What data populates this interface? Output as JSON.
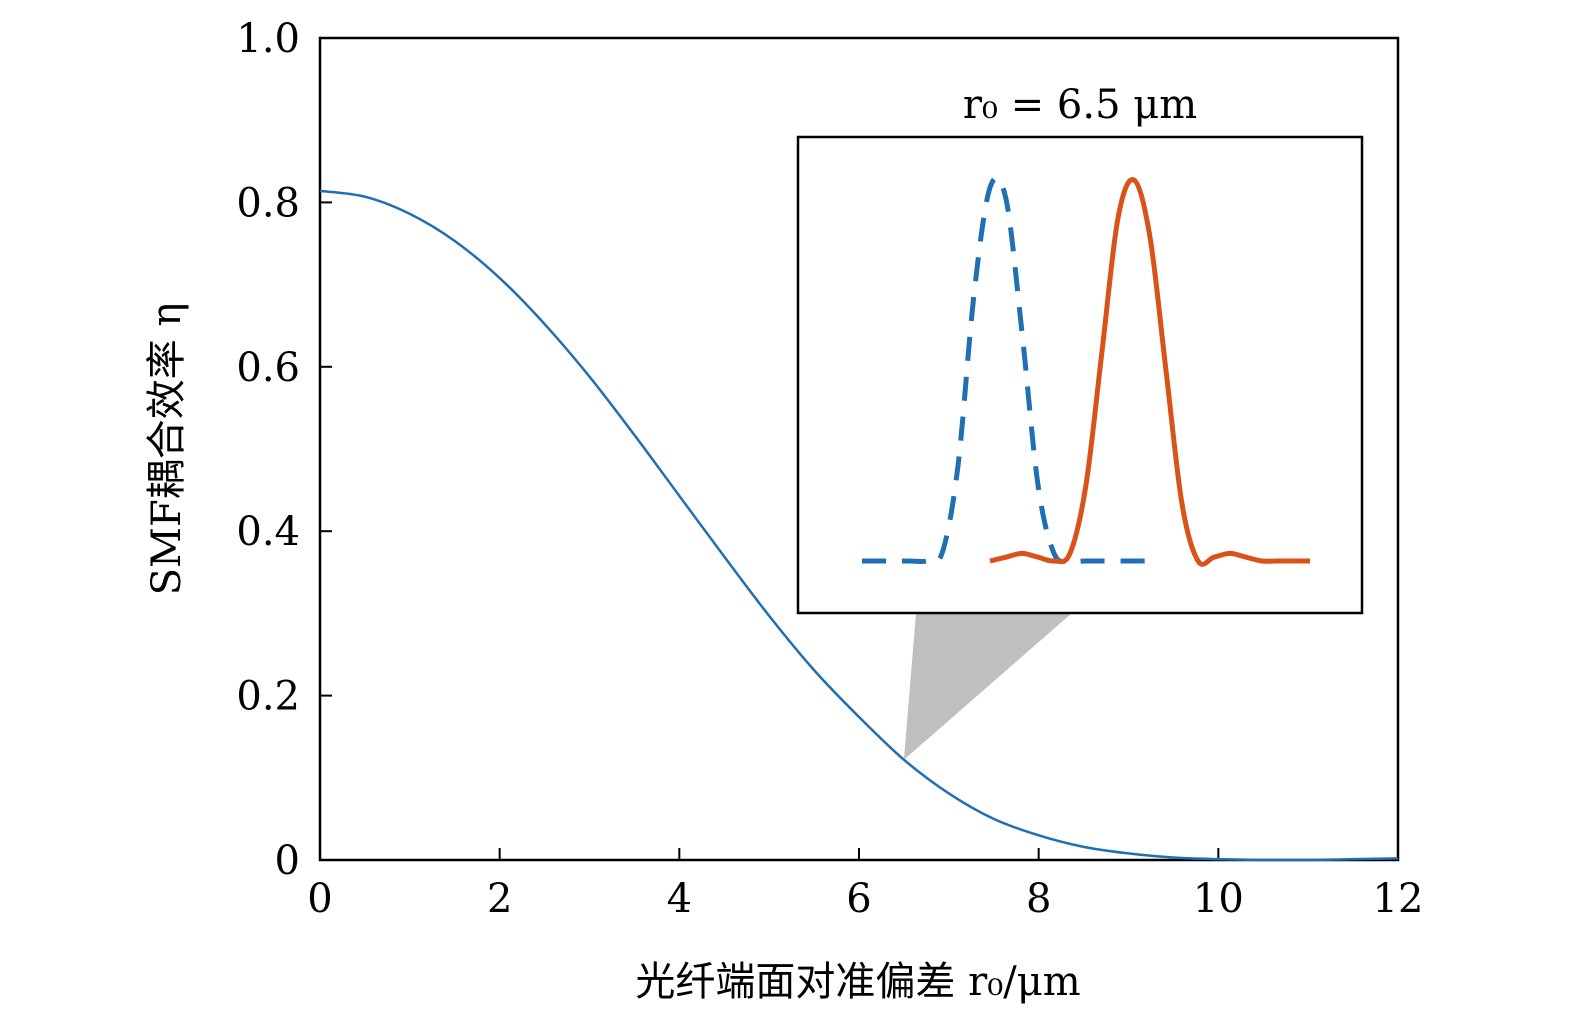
{
  "chart_data": {
    "type": "line",
    "title": "",
    "xlabel": "光纤端面对准偏差 r₀/μm",
    "ylabel": "SMF耦合效率 η",
    "xlim": [
      0,
      12
    ],
    "ylim": [
      0,
      1.0
    ],
    "x_ticks": [
      "0",
      "2",
      "4",
      "6",
      "8",
      "10",
      "12"
    ],
    "y_ticks": [
      "0",
      "0.2",
      "0.4",
      "0.6",
      "0.8",
      "1.0"
    ],
    "grid": false,
    "series": [
      {
        "color": "#1f6fb2",
        "x": [
          0,
          0.5,
          1,
          1.5,
          2,
          2.5,
          3,
          3.5,
          4,
          4.5,
          5,
          5.5,
          6,
          6.5,
          7,
          7.5,
          8,
          8.5,
          9,
          9.5,
          10,
          10.5,
          11,
          11.5,
          12
        ],
        "y": [
          0.814,
          0.807,
          0.786,
          0.753,
          0.708,
          0.652,
          0.588,
          0.517,
          0.443,
          0.369,
          0.297,
          0.231,
          0.174,
          0.122,
          0.081,
          0.05,
          0.03,
          0.016,
          0.008,
          0.003,
          0.001,
          0.0,
          0.0,
          0.001,
          0.002
        ]
      }
    ],
    "zoom_point": {
      "x": 6.5,
      "y": 0.122
    },
    "inset": {
      "title": "r₀ = 6.5 μm",
      "series": [
        {
          "style": "dashed",
          "color": "#1f6fb2",
          "x": [
            -4,
            -3.5,
            -3,
            -2.5,
            -2,
            -1.5,
            -1,
            -0.5,
            0,
            0.5,
            1,
            1.5,
            2,
            2.5,
            3,
            3.5,
            4,
            4.5,
            5
          ],
          "y": [
            0,
            0,
            0,
            0,
            0,
            0.02,
            0.25,
            0.7,
            0.98,
            0.95,
            0.6,
            0.2,
            0.02,
            0,
            0,
            0,
            0,
            0,
            0
          ]
        },
        {
          "style": "solid",
          "color": "#d95319",
          "x": [
            0,
            0.5,
            1,
            1.5,
            2,
            2.5,
            3,
            3.5,
            4,
            4.5,
            5,
            5.5,
            6,
            6.5,
            7,
            7.5,
            8,
            8.5,
            9,
            9.5,
            10
          ],
          "y": [
            0,
            0.01,
            0.02,
            0.01,
            0,
            0.02,
            0.2,
            0.55,
            0.9,
            1.0,
            0.85,
            0.5,
            0.15,
            0,
            0.01,
            0.02,
            0.01,
            0,
            0,
            0,
            0
          ]
        }
      ]
    }
  }
}
